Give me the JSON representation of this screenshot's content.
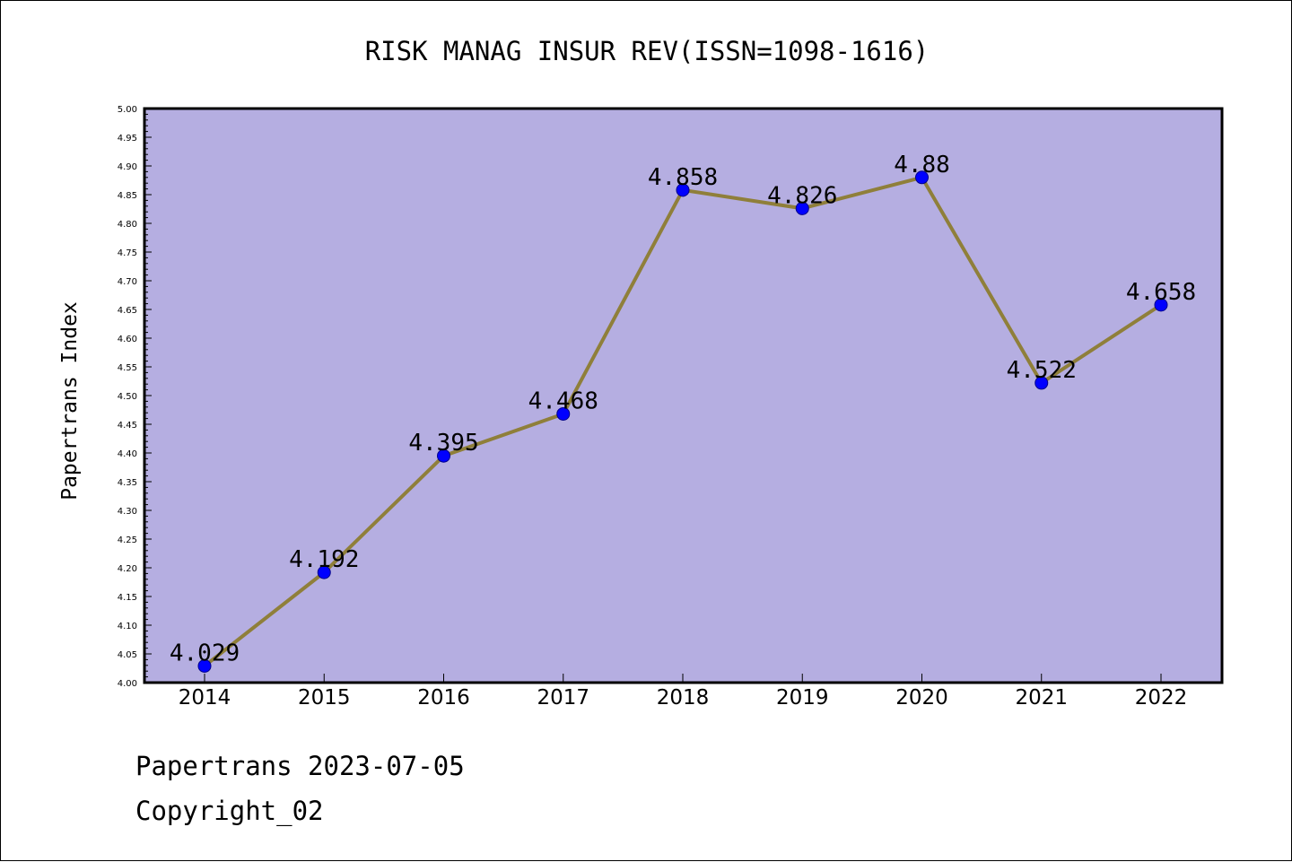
{
  "colors": {
    "plot_background": "#b5aee1",
    "line": "#8f7f3a",
    "marker": "#0000ff",
    "marker_edge": "#00008b",
    "axis": "#000000"
  },
  "footer": {
    "date_line": "Papertrans 2023-07-05",
    "copyright_line": "Copyright_02"
  },
  "chart_data": {
    "type": "line",
    "title": "RISK MANAG INSUR REV(ISSN=1098-1616)",
    "xlabel": "",
    "ylabel": "Papertrans Index",
    "categories": [
      "2014",
      "2015",
      "2016",
      "2017",
      "2018",
      "2019",
      "2020",
      "2021",
      "2022"
    ],
    "series": [
      {
        "values": [
          4.029,
          4.192,
          4.395,
          4.468,
          4.858,
          4.826,
          4.88,
          4.522,
          4.658
        ],
        "data_labels": [
          "4.029",
          "4.192",
          "4.395",
          "4.468",
          "4.858",
          "4.826",
          "4.88",
          "4.522",
          "4.658"
        ]
      }
    ],
    "ylim": [
      4.0,
      5.0
    ],
    "yticks": [
      "4.00",
      "4.05",
      "4.10",
      "4.15",
      "4.20",
      "4.25",
      "4.30",
      "4.35",
      "4.40",
      "4.45",
      "4.50",
      "4.55",
      "4.60",
      "4.65",
      "4.70",
      "4.75",
      "4.80",
      "4.85",
      "4.90",
      "4.95",
      "5.00"
    ],
    "grid": false,
    "legend": "none"
  }
}
